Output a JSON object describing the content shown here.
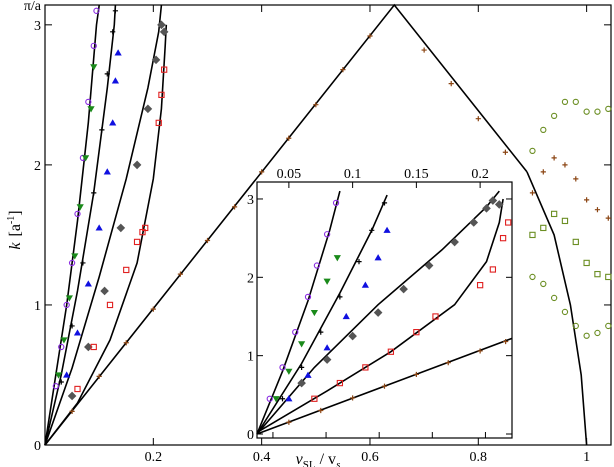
{
  "chart_data": {
    "type": "scatter",
    "xlabel": {
      "main": "v",
      "sub1": "SL",
      "mid": " / v",
      "sub2": "s"
    },
    "ylabel": {
      "main": "k",
      "unit_open": "[a",
      "unit_sup": "-1",
      "unit_close": "]"
    },
    "xlim": [
      0,
      1.045
    ],
    "ylim": [
      0,
      3.1416
    ],
    "xticks": [
      {
        "v": 0.2,
        "label": "0.2"
      },
      {
        "v": 0.4,
        "label": "0.4"
      },
      {
        "v": 0.6,
        "label": "0.6"
      },
      {
        "v": 0.8,
        "label": "0.8"
      },
      {
        "v": 1.0,
        "label": "1"
      }
    ],
    "yticks": [
      {
        "v": 0,
        "label": "0"
      },
      {
        "v": 1,
        "label": "1"
      },
      {
        "v": 2,
        "label": "2"
      },
      {
        "v": 3,
        "label": "3"
      },
      {
        "v": 3.1416,
        "label": "π/a"
      }
    ],
    "grid": false,
    "main_curves": [
      {
        "name": "bound-1",
        "color": "#000000",
        "dash": false,
        "points": [
          [
            0,
            0
          ],
          [
            0.02,
            0.5
          ],
          [
            0.04,
            1.0
          ],
          [
            0.06,
            1.6
          ],
          [
            0.08,
            2.3
          ],
          [
            0.095,
            3.0
          ],
          [
            0.1,
            3.14
          ]
        ]
      },
      {
        "name": "bound-2",
        "color": "#000000",
        "dash": false,
        "points": [
          [
            0,
            0
          ],
          [
            0.03,
            0.5
          ],
          [
            0.06,
            1.1
          ],
          [
            0.09,
            1.8
          ],
          [
            0.115,
            2.55
          ],
          [
            0.128,
            3.0
          ],
          [
            0.13,
            3.14
          ]
        ]
      },
      {
        "name": "bound-3",
        "color": "#000000",
        "dash": false,
        "points": [
          [
            0,
            0
          ],
          [
            0.05,
            0.55
          ],
          [
            0.1,
            1.2
          ],
          [
            0.15,
            1.9
          ],
          [
            0.19,
            2.55
          ],
          [
            0.21,
            2.95
          ],
          [
            0.215,
            3.14
          ]
        ]
      },
      {
        "name": "bound-4",
        "color": "#000000",
        "dash": false,
        "points": [
          [
            0,
            0
          ],
          [
            0.06,
            0.3
          ],
          [
            0.12,
            0.75
          ],
          [
            0.17,
            1.3
          ],
          [
            0.2,
            1.9
          ],
          [
            0.215,
            2.4
          ],
          [
            0.222,
            2.85
          ],
          [
            0.224,
            3.0
          ]
        ]
      },
      {
        "name": "triangle",
        "color": "#000000",
        "dash": false,
        "points": [
          [
            0,
            0
          ],
          [
            0.645,
            3.1416
          ],
          [
            0.89,
            1.95
          ]
        ]
      },
      {
        "name": "tail",
        "color": "#000000",
        "dash": false,
        "points": [
          [
            0.89,
            1.95
          ],
          [
            0.94,
            1.5
          ],
          [
            0.97,
            1.0
          ],
          [
            0.99,
            0.5
          ],
          [
            1.0,
            0.0
          ]
        ]
      }
    ],
    "main_series": [
      {
        "name": "purple",
        "color": "#8a2be2",
        "marker": "circle",
        "x": [
          0.02,
          0.03,
          0.04,
          0.05,
          0.06,
          0.07,
          0.08,
          0.09,
          0.095
        ],
        "y": [
          0.42,
          0.7,
          1.0,
          1.3,
          1.65,
          2.05,
          2.45,
          2.85,
          3.1
        ]
      },
      {
        "name": "green",
        "color": "#1a8a1a",
        "marker": "tri-down",
        "x": [
          0.025,
          0.035,
          0.045,
          0.055,
          0.065,
          0.075,
          0.085,
          0.09
        ],
        "y": [
          0.5,
          0.75,
          1.05,
          1.35,
          1.7,
          2.05,
          2.4,
          2.7
        ]
      },
      {
        "name": "black-plus",
        "color": "#000000",
        "marker": "plus",
        "x": [
          0.03,
          0.05,
          0.07,
          0.09,
          0.105,
          0.115,
          0.125,
          0.13
        ],
        "y": [
          0.45,
          0.85,
          1.3,
          1.8,
          2.25,
          2.65,
          2.95,
          3.1
        ]
      },
      {
        "name": "blue",
        "color": "#1010e0",
        "marker": "tri-up",
        "x": [
          0.04,
          0.06,
          0.08,
          0.1,
          0.115,
          0.125,
          0.13,
          0.135
        ],
        "y": [
          0.5,
          0.8,
          1.15,
          1.55,
          1.95,
          2.3,
          2.6,
          2.8
        ]
      },
      {
        "name": "grey",
        "color": "#555555",
        "marker": "diamond",
        "x": [
          0.05,
          0.08,
          0.11,
          0.14,
          0.17,
          0.19,
          0.205,
          0.215,
          0.22
        ],
        "y": [
          0.35,
          0.7,
          1.1,
          1.55,
          2.0,
          2.4,
          2.75,
          3.0,
          2.95
        ]
      },
      {
        "name": "red",
        "color": "#e02020",
        "marker": "square",
        "x": [
          0.06,
          0.09,
          0.12,
          0.15,
          0.17,
          0.18,
          0.185,
          0.21,
          0.215,
          0.22
        ],
        "y": [
          0.4,
          0.7,
          1.0,
          1.25,
          1.45,
          1.52,
          1.55,
          2.3,
          2.5,
          2.68
        ]
      },
      {
        "name": "triangle-marks",
        "color": "#8b4513",
        "marker": "plus",
        "x": [
          0.05,
          0.1,
          0.15,
          0.2,
          0.25,
          0.3,
          0.35,
          0.4,
          0.45,
          0.5,
          0.55,
          0.6,
          0.7,
          0.75,
          0.8,
          0.85
        ],
        "y": [
          0.24,
          0.49,
          0.73,
          0.97,
          1.22,
          1.46,
          1.7,
          1.95,
          2.19,
          2.43,
          2.68,
          2.92,
          2.82,
          2.58,
          2.33,
          2.09
        ]
      },
      {
        "name": "tail-olive-1",
        "color": "#6b8e23",
        "marker": "circle",
        "x": [
          0.9,
          0.92,
          0.94,
          0.96,
          0.98,
          1.0,
          1.02,
          1.04
        ],
        "y": [
          2.1,
          2.25,
          2.35,
          2.45,
          2.45,
          2.38,
          2.38,
          2.4
        ]
      },
      {
        "name": "tail-brown",
        "color": "#8b4513",
        "marker": "plus",
        "x": [
          0.9,
          0.92,
          0.94,
          0.96,
          0.98,
          1.0,
          1.02,
          1.04
        ],
        "y": [
          1.8,
          1.95,
          2.05,
          2.0,
          1.9,
          1.75,
          1.68,
          1.62
        ]
      },
      {
        "name": "tail-olive-2",
        "color": "#6b8e23",
        "marker": "square",
        "x": [
          0.9,
          0.92,
          0.94,
          0.96,
          0.98,
          1.0,
          1.02,
          1.04
        ],
        "y": [
          1.5,
          1.55,
          1.65,
          1.6,
          1.45,
          1.3,
          1.22,
          1.2
        ]
      },
      {
        "name": "tail-olive-3",
        "color": "#6b8e23",
        "marker": "circle",
        "x": [
          0.9,
          0.92,
          0.94,
          0.96,
          0.98,
          1.0,
          1.02,
          1.04
        ],
        "y": [
          1.2,
          1.15,
          1.05,
          0.95,
          0.85,
          0.78,
          0.8,
          0.85
        ]
      }
    ],
    "inset": {
      "xlim": [
        0.025,
        0.225
      ],
      "ylim": [
        0,
        3.14
      ],
      "xticks": [
        {
          "v": 0.05,
          "label": "0.05"
        },
        {
          "v": 0.1,
          "label": "0.1"
        },
        {
          "v": 0.15,
          "label": "0.15"
        },
        {
          "v": 0.2,
          "label": "0.2"
        }
      ],
      "bottom_ticks": [
        {
          "v": 0.4,
          "label": "0.4"
        },
        {
          "v": 0.5,
          "label": "0.5"
        },
        {
          "v": 0.6,
          "label": "0.6"
        },
        {
          "v": 0.7,
          "label": "0.7"
        },
        {
          "v": 0.8,
          "label": "0.8"
        }
      ],
      "bottom_lim": [
        0.37,
        0.85
      ],
      "yticks": [
        {
          "v": 0,
          "label": "0"
        },
        {
          "v": 1,
          "label": "1"
        },
        {
          "v": 2,
          "label": "2"
        },
        {
          "v": 3,
          "label": "3"
        }
      ],
      "curves": [
        {
          "name": "ins-1",
          "color": "#000000",
          "points": [
            [
              0.025,
              0
            ],
            [
              0.045,
              0.8
            ],
            [
              0.065,
              1.7
            ],
            [
              0.082,
              2.6
            ],
            [
              0.09,
              3.1
            ]
          ]
        },
        {
          "name": "ins-2",
          "color": "#000000",
          "points": [
            [
              0.025,
              0
            ],
            [
              0.06,
              0.9
            ],
            [
              0.09,
              1.8
            ],
            [
              0.115,
              2.6
            ],
            [
              0.127,
              3.05
            ]
          ]
        },
        {
          "name": "ins-3",
          "color": "#000000",
          "points": [
            [
              0.025,
              0
            ],
            [
              0.07,
              0.85
            ],
            [
              0.12,
              1.65
            ],
            [
              0.17,
              2.35
            ],
            [
              0.205,
              2.9
            ],
            [
              0.215,
              3.1
            ]
          ]
        },
        {
          "name": "ins-4",
          "color": "#000000",
          "points": [
            [
              0.025,
              0.02
            ],
            [
              0.08,
              0.55
            ],
            [
              0.13,
              1.05
            ],
            [
              0.18,
              1.65
            ],
            [
              0.205,
              2.2
            ],
            [
              0.215,
              2.7
            ],
            [
              0.218,
              3.0
            ]
          ]
        },
        {
          "name": "ins-5",
          "color": "#000000",
          "points": [
            [
              0.025,
              0
            ],
            [
              0.225,
              1.22
            ]
          ]
        }
      ],
      "series": [
        {
          "name": "ins-purple",
          "color": "#8a2be2",
          "marker": "circle",
          "x": [
            0.035,
            0.045,
            0.055,
            0.065,
            0.072,
            0.08,
            0.087
          ],
          "y": [
            0.45,
            0.85,
            1.3,
            1.75,
            2.15,
            2.55,
            2.95
          ]
        },
        {
          "name": "ins-green",
          "color": "#1a8a1a",
          "marker": "tri-down",
          "x": [
            0.04,
            0.05,
            0.06,
            0.07,
            0.08,
            0.088
          ],
          "y": [
            0.45,
            0.8,
            1.15,
            1.55,
            1.95,
            2.25
          ]
        },
        {
          "name": "ins-black",
          "color": "#000000",
          "marker": "plus",
          "x": [
            0.045,
            0.06,
            0.075,
            0.09,
            0.105,
            0.115,
            0.125
          ],
          "y": [
            0.45,
            0.85,
            1.3,
            1.75,
            2.2,
            2.6,
            2.95
          ]
        },
        {
          "name": "ins-blue",
          "color": "#1010e0",
          "marker": "tri-up",
          "x": [
            0.05,
            0.065,
            0.08,
            0.095,
            0.11,
            0.12,
            0.127
          ],
          "y": [
            0.45,
            0.75,
            1.1,
            1.5,
            1.9,
            2.25,
            2.6
          ]
        },
        {
          "name": "ins-grey",
          "color": "#555555",
          "marker": "diamond",
          "x": [
            0.06,
            0.08,
            0.1,
            0.12,
            0.14,
            0.16,
            0.18,
            0.195,
            0.205,
            0.21,
            0.215
          ],
          "y": [
            0.65,
            0.95,
            1.25,
            1.55,
            1.85,
            2.15,
            2.45,
            2.7,
            2.88,
            2.98,
            2.93
          ]
        },
        {
          "name": "ins-red",
          "color": "#e02020",
          "marker": "square",
          "x": [
            0.07,
            0.09,
            0.11,
            0.13,
            0.15,
            0.165,
            0.2,
            0.21,
            0.218,
            0.222
          ],
          "y": [
            0.45,
            0.65,
            0.85,
            1.05,
            1.3,
            1.5,
            1.9,
            2.1,
            2.5,
            2.7
          ]
        },
        {
          "name": "ins-brown",
          "color": "#8b4513",
          "marker": "plus",
          "x": [
            0.05,
            0.075,
            0.1,
            0.125,
            0.15,
            0.175,
            0.2,
            0.22
          ],
          "y": [
            0.15,
            0.3,
            0.46,
            0.61,
            0.76,
            0.91,
            1.06,
            1.18
          ]
        }
      ]
    }
  }
}
